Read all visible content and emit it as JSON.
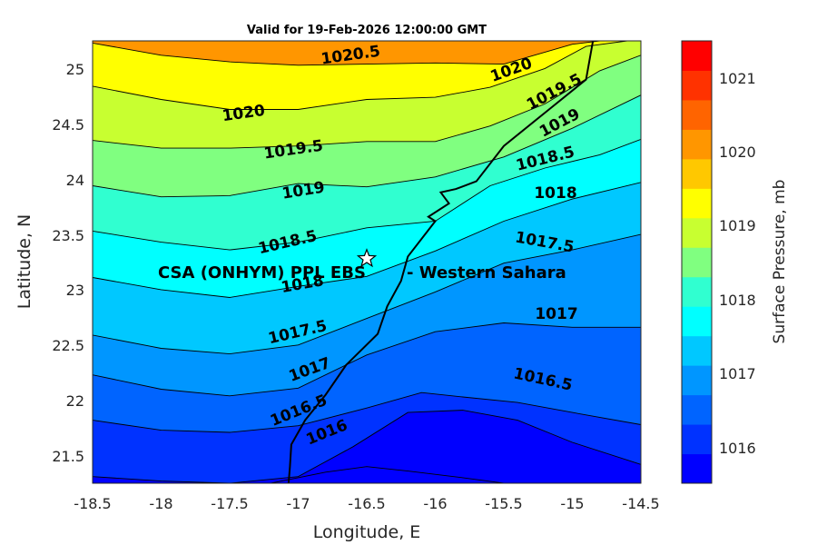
{
  "title": "Valid for 19-Feb-2026 12:00:00 GMT",
  "axes": {
    "xlabel": "Longitude, E",
    "ylabel": "Latitude, N",
    "xticks": [
      "-18.5",
      "-18",
      "-17.5",
      "-17",
      "-16.5",
      "-16",
      "-15.5",
      "-15",
      "-14.5"
    ],
    "yticks": [
      "25",
      "24.5",
      "24",
      "23.5",
      "23",
      "22.5",
      "22",
      "21.5"
    ]
  },
  "colorbar": {
    "label": "Surface Pressure, mb",
    "ticks": [
      "1021",
      "1020",
      "1019",
      "1018",
      "1017",
      "1016"
    ],
    "colors": [
      "#0000ff",
      "#0032ff",
      "#0064ff",
      "#0096ff",
      "#00c8ff",
      "#00ffff",
      "#30ffd0",
      "#80ff80",
      "#c8ff30",
      "#ffff00",
      "#ffc800",
      "#ff9600",
      "#ff6400",
      "#ff3200",
      "#ff0000"
    ]
  },
  "contour_labels": [
    "1020.5",
    "1020",
    "1019.5",
    "1020",
    "1019.5",
    "1019",
    "1018.5",
    "1019",
    "1018.5",
    "1018",
    "1018",
    "1017.5",
    "1017.5",
    "1017",
    "1017",
    "1016.5",
    "1016.5",
    "1016"
  ],
  "station": {
    "name": "CSA (ONHYM) PPL EBS",
    "region": "- Western Sahara"
  },
  "chart_data": {
    "type": "contour map",
    "variable": "Surface Pressure, mb",
    "xlabel": "Longitude, E",
    "ylabel": "Latitude, N",
    "xlim": [
      -18.5,
      -14.5
    ],
    "ylim": [
      21.25,
      25.25
    ],
    "clim": [
      1015.75,
      1021.25
    ],
    "contour_interval": 0.5,
    "station": {
      "lon": -16.5,
      "lat": 23.28,
      "label": "CSA (ONHYM) PPL EBS - Western Sahara"
    },
    "isobars": [
      {
        "level": 1020.5,
        "points": [
          [
            -18.5,
            25.23
          ],
          [
            -18.0,
            25.12
          ],
          [
            -17.5,
            25.06
          ],
          [
            -17.0,
            25.03
          ],
          [
            -16.5,
            25.04
          ],
          [
            -16.0,
            25.05
          ],
          [
            -15.5,
            25.04
          ],
          [
            -15.0,
            25.22
          ],
          [
            -14.8,
            25.25
          ]
        ]
      },
      {
        "level": 1020.0,
        "points": [
          [
            -18.5,
            24.84
          ],
          [
            -18.0,
            24.72
          ],
          [
            -17.5,
            24.63
          ],
          [
            -17.0,
            24.63
          ],
          [
            -16.5,
            24.72
          ],
          [
            -16.0,
            24.74
          ],
          [
            -15.6,
            24.83
          ],
          [
            -15.2,
            25.0
          ],
          [
            -14.9,
            25.2
          ],
          [
            -14.6,
            25.25
          ]
        ]
      },
      {
        "level": 1019.5,
        "points": [
          [
            -18.5,
            24.35
          ],
          [
            -18.0,
            24.28
          ],
          [
            -17.5,
            24.28
          ],
          [
            -17.0,
            24.3
          ],
          [
            -16.5,
            24.34
          ],
          [
            -16.0,
            24.34
          ],
          [
            -15.6,
            24.48
          ],
          [
            -15.2,
            24.68
          ],
          [
            -14.8,
            24.98
          ],
          [
            -14.5,
            25.12
          ]
        ]
      },
      {
        "level": 1019.0,
        "points": [
          [
            -18.5,
            23.94
          ],
          [
            -18.0,
            23.84
          ],
          [
            -17.5,
            23.85
          ],
          [
            -17.0,
            23.96
          ],
          [
            -16.5,
            23.93
          ],
          [
            -16.0,
            24.02
          ],
          [
            -15.5,
            24.2
          ],
          [
            -15.0,
            24.46
          ],
          [
            -14.5,
            24.76
          ]
        ]
      },
      {
        "level": 1018.5,
        "points": [
          [
            -18.5,
            23.53
          ],
          [
            -18.0,
            23.43
          ],
          [
            -17.5,
            23.36
          ],
          [
            -17.0,
            23.43
          ],
          [
            -16.5,
            23.56
          ],
          [
            -16.0,
            23.62
          ],
          [
            -15.6,
            23.94
          ],
          [
            -15.2,
            24.1
          ],
          [
            -14.8,
            24.22
          ],
          [
            -14.5,
            24.36
          ]
        ]
      },
      {
        "level": 1018.0,
        "points": [
          [
            -18.5,
            23.11
          ],
          [
            -18.0,
            23.0
          ],
          [
            -17.5,
            22.93
          ],
          [
            -17.0,
            23.03
          ],
          [
            -16.5,
            23.12
          ],
          [
            -16.0,
            23.35
          ],
          [
            -15.5,
            23.62
          ],
          [
            -15.0,
            23.82
          ],
          [
            -14.5,
            23.97
          ]
        ]
      },
      {
        "level": 1017.5,
        "points": [
          [
            -18.5,
            22.59
          ],
          [
            -18.0,
            22.47
          ],
          [
            -17.5,
            22.42
          ],
          [
            -17.0,
            22.5
          ],
          [
            -16.5,
            22.74
          ],
          [
            -16.0,
            22.98
          ],
          [
            -15.5,
            23.24
          ],
          [
            -15.0,
            23.36
          ],
          [
            -14.5,
            23.5
          ]
        ]
      },
      {
        "level": 1017.0,
        "points": [
          [
            -18.5,
            22.23
          ],
          [
            -18.0,
            22.1
          ],
          [
            -17.5,
            22.04
          ],
          [
            -17.0,
            22.11
          ],
          [
            -16.5,
            22.41
          ],
          [
            -16.0,
            22.62
          ],
          [
            -15.5,
            22.7
          ],
          [
            -15.0,
            22.66
          ],
          [
            -14.5,
            22.66
          ]
        ]
      },
      {
        "level": 1016.5,
        "points": [
          [
            -18.5,
            21.82
          ],
          [
            -18.0,
            21.73
          ],
          [
            -17.5,
            21.71
          ],
          [
            -17.0,
            21.77
          ],
          [
            -16.5,
            21.93
          ],
          [
            -16.1,
            22.07
          ],
          [
            -15.8,
            22.03
          ],
          [
            -15.4,
            21.98
          ],
          [
            -15.0,
            21.89
          ],
          [
            -14.5,
            21.78
          ]
        ]
      },
      {
        "level": 1016.0,
        "points": [
          [
            -18.5,
            21.31
          ],
          [
            -18.0,
            21.27
          ],
          [
            -17.5,
            21.25
          ],
          [
            -17.0,
            21.31
          ],
          [
            -16.6,
            21.58
          ],
          [
            -16.2,
            21.89
          ],
          [
            -15.8,
            21.91
          ],
          [
            -15.4,
            21.82
          ],
          [
            -15.0,
            21.62
          ],
          [
            -14.5,
            21.42
          ]
        ]
      },
      {
        "level": 1015.5,
        "points": [
          [
            -17.2,
            21.25
          ],
          [
            -16.8,
            21.35
          ],
          [
            -16.5,
            21.4
          ],
          [
            -16.2,
            21.36
          ],
          [
            -15.8,
            21.3
          ],
          [
            -15.5,
            21.25
          ]
        ]
      }
    ],
    "coastline": [
      [
        -14.85,
        25.25
      ],
      [
        -14.9,
        24.9
      ],
      [
        -15.2,
        24.6
      ],
      [
        -15.5,
        24.3
      ],
      [
        -15.7,
        23.98
      ],
      [
        -15.85,
        23.91
      ],
      [
        -15.96,
        23.88
      ],
      [
        -15.9,
        23.78
      ],
      [
        -16.05,
        23.66
      ],
      [
        -16.0,
        23.62
      ],
      [
        -16.2,
        23.3
      ],
      [
        -16.25,
        23.08
      ],
      [
        -16.35,
        22.85
      ],
      [
        -16.42,
        22.6
      ],
      [
        -16.65,
        22.32
      ],
      [
        -16.8,
        22.05
      ],
      [
        -16.95,
        21.82
      ],
      [
        -17.05,
        21.6
      ],
      [
        -17.06,
        21.4
      ],
      [
        -17.07,
        21.25
      ]
    ]
  }
}
